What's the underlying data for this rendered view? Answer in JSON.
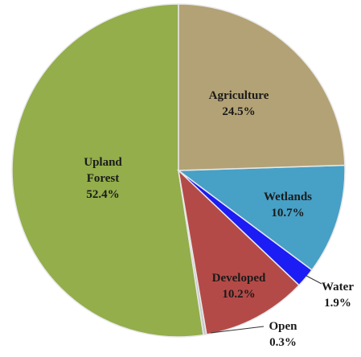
{
  "chart_data": {
    "type": "pie",
    "categories": [
      "Agriculture",
      "Wetlands",
      "Water",
      "Developed",
      "Open",
      "Upland Forest"
    ],
    "values": [
      24.5,
      10.7,
      1.9,
      10.2,
      0.3,
      52.4
    ],
    "value_labels": [
      "24.5%",
      "10.7%",
      "1.9%",
      "10.2%",
      "0.3%",
      "52.4%"
    ],
    "colors": [
      "#b3a275",
      "#47a0c6",
      "#1c1cf5",
      "#b44a47",
      "#c8c8c8",
      "#93ae4b"
    ]
  }
}
